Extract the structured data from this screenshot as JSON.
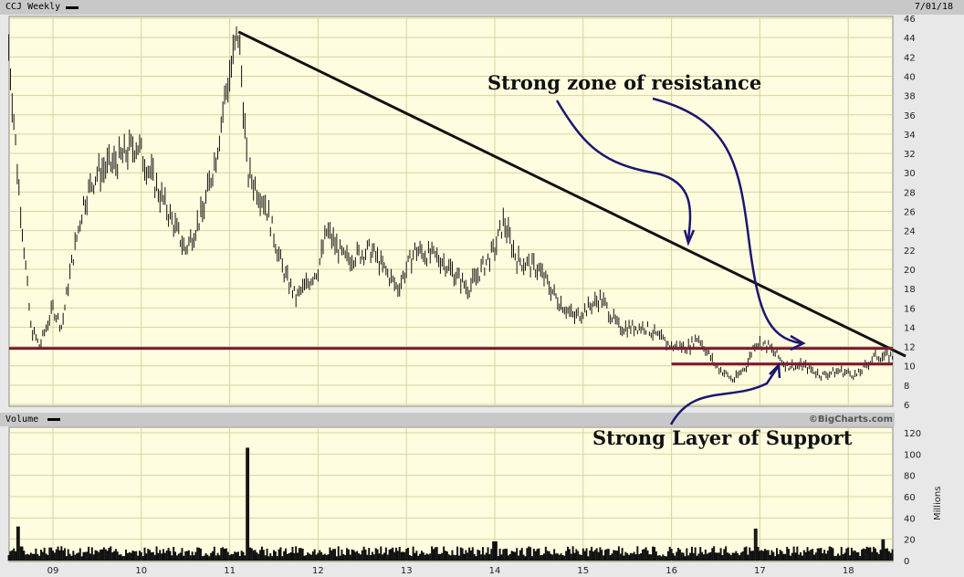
{
  "header": {
    "title": "CCJ Weekly",
    "date": "7/01/18"
  },
  "volume_header": {
    "title": "Volume",
    "credit": "©BigCharts.com"
  },
  "annotations": {
    "resistance": "Strong zone of resistance",
    "support": "Strong Layer of Support"
  },
  "colors": {
    "background": "#fffde0",
    "grid": "#d8d29a",
    "bars": "#111111",
    "trendline": "#111111",
    "support": "#7a1a35",
    "arrows": "#1c1670"
  },
  "chart_data": [
    {
      "type": "bar",
      "title": "CCJ Weekly",
      "subtype": "ohlc",
      "x_ticks": [
        "09",
        "10",
        "11",
        "12",
        "13",
        "14",
        "15",
        "16",
        "17",
        "18"
      ],
      "y_ticks": [
        6,
        8,
        10,
        12,
        14,
        16,
        18,
        20,
        22,
        24,
        26,
        28,
        30,
        32,
        34,
        36,
        38,
        40,
        42,
        44,
        46
      ],
      "ylim": [
        6,
        46
      ],
      "grid": true,
      "price_path": [
        [
          2008.5,
          43
        ],
        [
          2008.6,
          30
        ],
        [
          2008.75,
          14
        ],
        [
          2008.85,
          12
        ],
        [
          2009.0,
          16
        ],
        [
          2009.1,
          14
        ],
        [
          2009.2,
          20
        ],
        [
          2009.35,
          27
        ],
        [
          2009.5,
          30
        ],
        [
          2009.7,
          31
        ],
        [
          2009.95,
          33
        ],
        [
          2010.2,
          28
        ],
        [
          2010.4,
          24
        ],
        [
          2010.5,
          22
        ],
        [
          2010.7,
          26
        ],
        [
          2010.85,
          32
        ],
        [
          2010.95,
          38
        ],
        [
          2011.1,
          44.5
        ],
        [
          2011.15,
          38
        ],
        [
          2011.2,
          30
        ],
        [
          2011.4,
          27
        ],
        [
          2011.6,
          20
        ],
        [
          2011.75,
          17
        ],
        [
          2012.0,
          20
        ],
        [
          2012.1,
          24
        ],
        [
          2012.3,
          21
        ],
        [
          2012.6,
          22
        ],
        [
          2012.9,
          18
        ],
        [
          2013.1,
          22
        ],
        [
          2013.4,
          21
        ],
        [
          2013.7,
          18
        ],
        [
          2014.0,
          22
        ],
        [
          2014.1,
          25
        ],
        [
          2014.25,
          21
        ],
        [
          2014.5,
          20
        ],
        [
          2014.7,
          17
        ],
        [
          2014.9,
          15
        ],
        [
          2015.2,
          17
        ],
        [
          2015.4,
          14
        ],
        [
          2015.7,
          14
        ],
        [
          2016.0,
          12
        ],
        [
          2016.2,
          12
        ],
        [
          2016.3,
          13
        ],
        [
          2016.5,
          10
        ],
        [
          2016.7,
          8.5
        ],
        [
          2016.85,
          10
        ],
        [
          2016.95,
          12.5
        ],
        [
          2017.1,
          12
        ],
        [
          2017.3,
          10
        ],
        [
          2017.5,
          10
        ],
        [
          2017.7,
          9
        ],
        [
          2017.9,
          9.5
        ],
        [
          2018.1,
          9
        ],
        [
          2018.3,
          11
        ],
        [
          2018.5,
          11
        ]
      ],
      "lines": {
        "trendline": [
          [
            2011.1,
            44.6
          ],
          [
            2018.65,
            11.0
          ]
        ],
        "support_long": [
          [
            2008.5,
            11.8
          ],
          [
            2018.5,
            11.8
          ]
        ],
        "support_short": [
          [
            2016.0,
            10.2
          ],
          [
            2018.5,
            10.2
          ]
        ]
      }
    },
    {
      "type": "bar",
      "title": "Volume",
      "ylabel": "Millions",
      "y_ticks": [
        0,
        20,
        40,
        60,
        80,
        100,
        120
      ],
      "ylim": [
        0,
        120
      ],
      "spikes": [
        [
          2008.6,
          32
        ],
        [
          2011.2,
          106
        ],
        [
          2016.95,
          30
        ],
        [
          2014.0,
          18
        ],
        [
          2018.4,
          20
        ]
      ],
      "typical": 8
    }
  ]
}
